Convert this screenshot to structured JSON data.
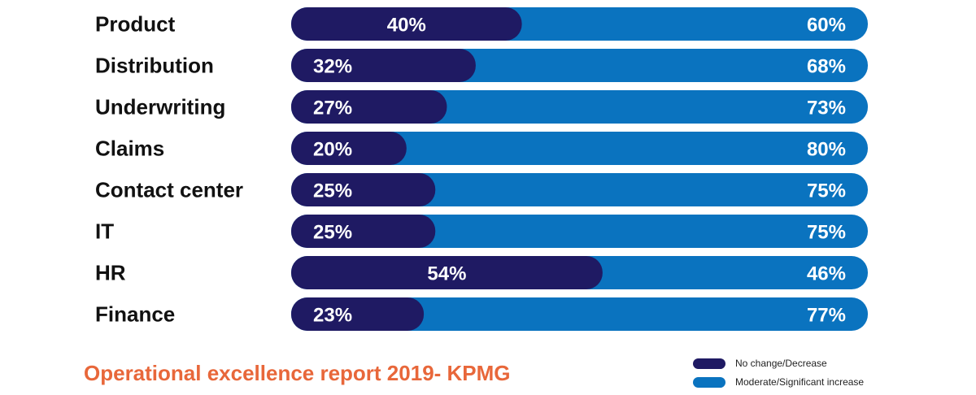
{
  "chart_data": {
    "type": "bar",
    "orientation": "horizontal",
    "stacked": true,
    "percent_stacked": true,
    "categories": [
      "Product",
      "Distribution",
      "Underwriting",
      "Claims",
      "Contact center",
      "IT",
      "HR",
      "Finance"
    ],
    "series": [
      {
        "name": "No change/Decrease",
        "color": "#1f1a63",
        "values": [
          40,
          32,
          27,
          20,
          25,
          25,
          54,
          23
        ],
        "labels": [
          "40%",
          "32%",
          "27%",
          "20%",
          "25%",
          "25%",
          "54%",
          "23%"
        ]
      },
      {
        "name": "Moderate/Significant increase",
        "color": "#0a73bf",
        "values": [
          60,
          68,
          73,
          80,
          75,
          75,
          46,
          77
        ],
        "labels": [
          "60%",
          "68%",
          "73%",
          "80%",
          "75%",
          "75%",
          "46%",
          "77%"
        ]
      }
    ],
    "xlim": [
      0,
      100
    ],
    "grid": false,
    "legend_position": "bottom-right"
  },
  "footer": {
    "title": "Operational excellence report 2019- KPMG",
    "title_color": "#e8673a"
  },
  "legend": [
    {
      "label": "No change/Decrease",
      "color": "#1f1a63"
    },
    {
      "label": "Moderate/Significant increase",
      "color": "#0a73bf"
    }
  ]
}
